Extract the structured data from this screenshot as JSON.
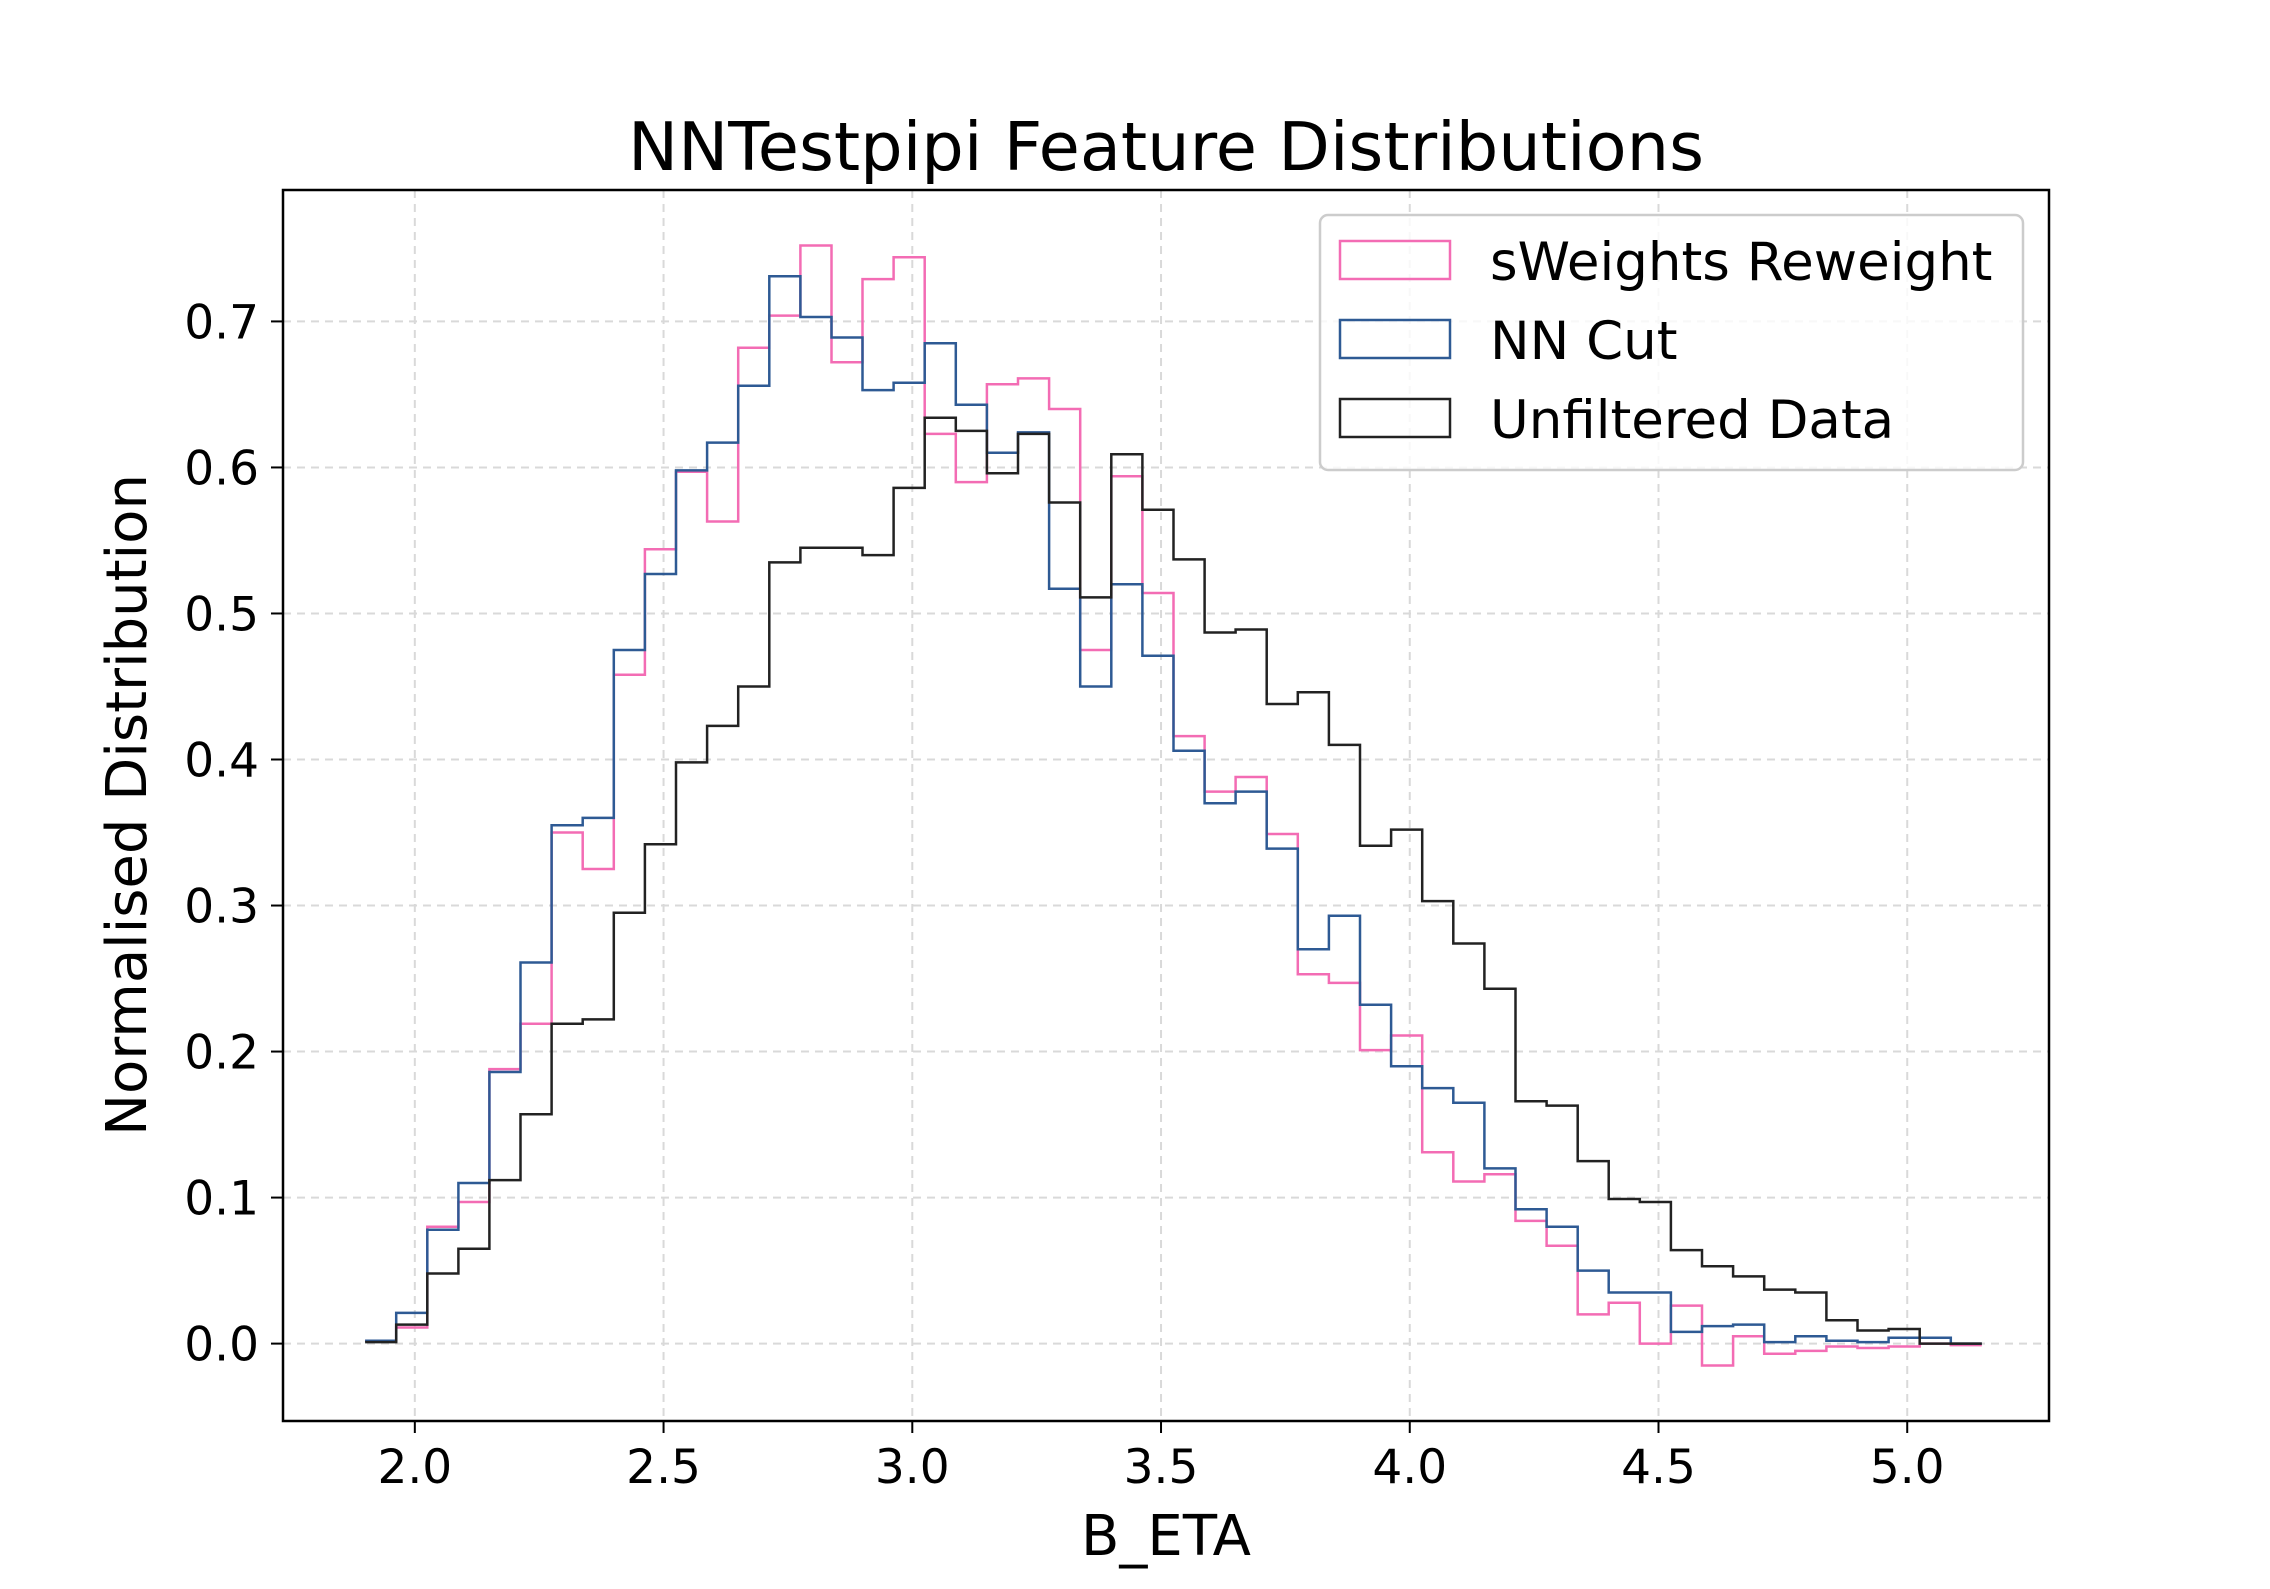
{
  "chart_data": {
    "type": "step",
    "title": "NNTestpipi Feature Distributions",
    "xlabel": "B_ETA",
    "ylabel": "Normalised Distribution",
    "xlim": [
      1.735,
      5.285
    ],
    "ylim": [
      -0.053,
      0.79
    ],
    "grid": true,
    "legend_position": "top-right",
    "xticks": [
      "2.0",
      "2.5",
      "3.0",
      "3.5",
      "4.0",
      "4.5",
      "5.0"
    ],
    "yticks": [
      "0.0",
      "0.1",
      "0.2",
      "0.3",
      "0.4",
      "0.5",
      "0.6",
      "0.7"
    ],
    "bins": {
      "start": 1.9,
      "width": 0.0625,
      "count": 52
    },
    "series": [
      {
        "name": "sWeights Reweight",
        "color": "#f36cb4",
        "values": [
          0.002,
          0.011,
          0.08,
          0.097,
          0.188,
          0.219,
          0.35,
          0.325,
          0.458,
          0.544,
          0.597,
          0.563,
          0.682,
          0.704,
          0.752,
          0.672,
          0.729,
          0.744,
          0.623,
          0.59,
          0.657,
          0.661,
          0.64,
          0.475,
          0.594,
          0.514,
          0.416,
          0.378,
          0.388,
          0.349,
          0.253,
          0.247,
          0.201,
          0.211,
          0.131,
          0.111,
          0.116,
          0.084,
          0.067,
          0.02,
          0.028,
          0.0,
          0.026,
          -0.015,
          0.005,
          -0.007,
          -0.005,
          -0.002,
          -0.003,
          -0.002,
          0.0,
          -0.001
        ]
      },
      {
        "name": "NN Cut",
        "color": "#2e5a94",
        "values": [
          0.002,
          0.021,
          0.078,
          0.11,
          0.186,
          0.261,
          0.355,
          0.36,
          0.475,
          0.527,
          0.598,
          0.617,
          0.656,
          0.731,
          0.703,
          0.689,
          0.653,
          0.658,
          0.685,
          0.643,
          0.61,
          0.624,
          0.517,
          0.45,
          0.52,
          0.471,
          0.406,
          0.37,
          0.378,
          0.339,
          0.27,
          0.293,
          0.232,
          0.19,
          0.175,
          0.165,
          0.12,
          0.092,
          0.08,
          0.05,
          0.035,
          0.035,
          0.008,
          0.012,
          0.013,
          0.001,
          0.005,
          0.002,
          0.001,
          0.004,
          0.004,
          0.0
        ]
      },
      {
        "name": "Unfiltered Data",
        "color": "#222222",
        "values": [
          0.001,
          0.013,
          0.048,
          0.065,
          0.112,
          0.157,
          0.219,
          0.222,
          0.295,
          0.342,
          0.398,
          0.423,
          0.45,
          0.535,
          0.545,
          0.545,
          0.54,
          0.586,
          0.634,
          0.625,
          0.596,
          0.623,
          0.576,
          0.511,
          0.609,
          0.571,
          0.537,
          0.487,
          0.489,
          0.438,
          0.446,
          0.41,
          0.341,
          0.352,
          0.303,
          0.274,
          0.243,
          0.166,
          0.163,
          0.125,
          0.099,
          0.097,
          0.064,
          0.053,
          0.046,
          0.037,
          0.035,
          0.016,
          0.009,
          0.01,
          0.0,
          0.0
        ]
      }
    ]
  }
}
